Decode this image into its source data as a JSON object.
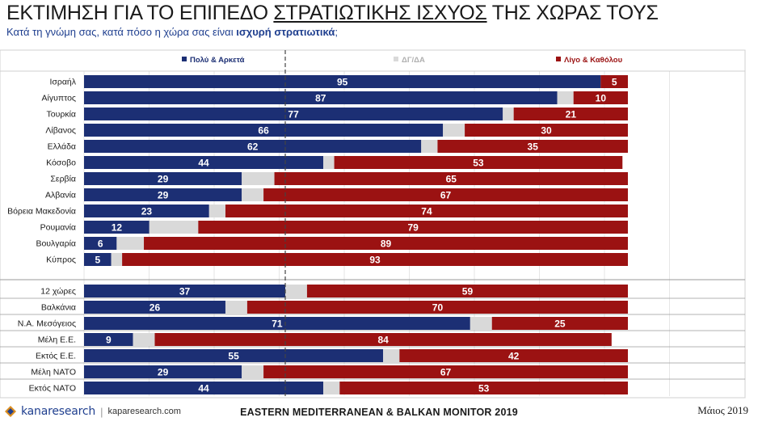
{
  "header": {
    "title_part1": "ΕΚΤΙΜΗΣΗ ΓΙΑ ΤΟ ΕΠΙΠΕΔΟ ",
    "title_underlined": "ΣΤΡΑΤΙΩΤΙΚΗΣ ΙΣΧΥΟΣ",
    "title_part2": " ΤΗΣ ΧΩΡΑΣ ΤΟΥΣ",
    "subtitle_part1": "Κατά τη γνώμη σας, κατά πόσο η χώρα σας είναι ",
    "subtitle_bold": "ισχυρή στρατιωτικά",
    "subtitle_part2": ";"
  },
  "footer": {
    "brand_a": "kana",
    "brand_b": "research",
    "separator": "|",
    "site": "kaparesearch.com",
    "center_text": "EASTERN MEDITERRANEAN & BALKAN MONITOR 2019",
    "date": "Μάιος 2019"
  },
  "colors": {
    "positive": "#1c2f74",
    "neutral": "#d9d9d9",
    "negative": "#9b1212",
    "text_dark": "#1a1a1a",
    "subtitle": "#1f3f8f"
  },
  "chart_data": {
    "type": "bar",
    "orientation": "horizontal",
    "stacked": true,
    "legend_position": "top",
    "series": [
      {
        "name": "Πολύ & Αρκετά",
        "color": "#1c2f74",
        "values": [
          95,
          87,
          77,
          66,
          62,
          44,
          29,
          29,
          23,
          12,
          6,
          5,
          37,
          26,
          71,
          9,
          55,
          29,
          44
        ]
      },
      {
        "name": "ΔΓ/ΔΑ",
        "color": "#d9d9d9",
        "values": [
          0,
          3,
          2,
          4,
          3,
          2,
          6,
          4,
          3,
          9,
          5,
          2,
          4,
          4,
          4,
          4,
          3,
          4,
          3
        ]
      },
      {
        "name": "Λίγο & Καθόλου",
        "color": "#9b1212",
        "values": [
          5,
          10,
          21,
          30,
          35,
          53,
          65,
          67,
          74,
          79,
          89,
          93,
          59,
          70,
          25,
          84,
          42,
          67,
          53
        ]
      }
    ],
    "categories": [
      "Ισραήλ",
      "Αίγυπτος",
      "Τουρκία",
      "Λίβανος",
      "Ελλάδα",
      "Κόσοβο",
      "Σερβία",
      "Αλβανία",
      "Βόρεια Μακεδονία",
      "Ρουμανία",
      "Βουλγαρία",
      "Κύπρος",
      "12 χώρες",
      "Βαλκάνια",
      "Ν.Α. Μεσόγειος",
      "Μέλη Ε.Ε.",
      "Εκτός Ε.Ε.",
      "Μέλη ΝΑΤΟ",
      "Εκτός ΝΑΤΟ"
    ],
    "value_labels_positive": [
      "95",
      "87",
      "77",
      "66",
      "62",
      "44",
      "29",
      "29",
      "23",
      "12",
      "6",
      "5",
      "37",
      "26",
      "71",
      "9",
      "55",
      "29",
      "44"
    ],
    "value_labels_negative": [
      "5",
      "10",
      "21",
      "30",
      "35",
      "53",
      "65",
      "67",
      "74",
      "79",
      "89",
      "93",
      "59",
      "70",
      "25",
      "84",
      "42",
      "67",
      "53"
    ],
    "xlim": [
      0,
      100
    ],
    "reference_line": 37
  }
}
